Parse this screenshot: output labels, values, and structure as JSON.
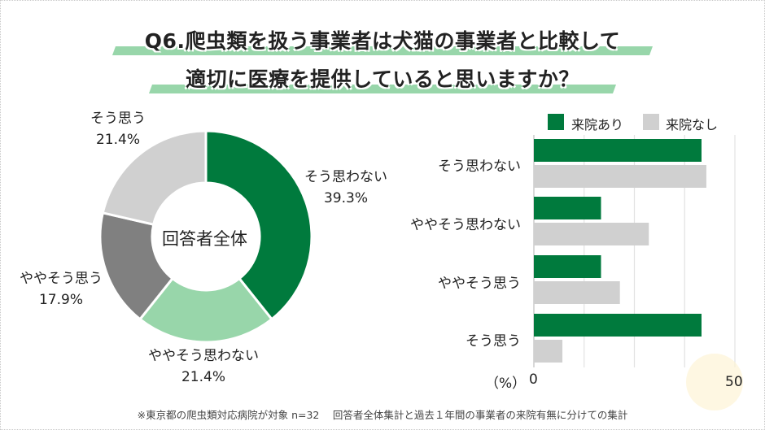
{
  "title": {
    "line1": "Q6.爬虫類を扱う事業者は犬猫の事業者と比較して",
    "line2": "適切に医療を提供していると思いますか？"
  },
  "donut": {
    "center_label": "回答者全体",
    "segments": [
      {
        "label": "そう思わない",
        "percent_text": "39.3%",
        "value": 39.3,
        "color": "#007A3D"
      },
      {
        "label": "ややそう思わない",
        "percent_text": "21.4%",
        "value": 21.4,
        "color": "#98D6AA"
      },
      {
        "label": "ややそう思う",
        "percent_text": "17.9%",
        "value": 17.9,
        "color": "#808080"
      },
      {
        "label": "そう思う",
        "percent_text": "21.4%",
        "value": 21.4,
        "color": "#D0D0D0"
      }
    ]
  },
  "bar": {
    "legend": [
      {
        "label": "来院あり",
        "color": "#007A3D"
      },
      {
        "label": "来院なし",
        "color": "#D0D0D0"
      }
    ],
    "categories": [
      "そう思わない",
      "ややそう思わない",
      "ややそう思う",
      "そう思う"
    ],
    "axis": {
      "unit_label": "（%）",
      "min_label": "0",
      "max_label": "50"
    }
  },
  "footnote": "※東京都の爬虫類対応病院が対象 n=32　 回答者全体集計と過去１年間の事業者の来院有無に分けての集計",
  "chart_data": [
    {
      "type": "pie",
      "subtype": "donut",
      "title": "Q6.爬虫類を扱う事業者は犬猫の事業者と比較して適切に医療を提供していると思いますか？",
      "center_label": "回答者全体",
      "categories": [
        "そう思わない",
        "ややそう思わない",
        "ややそう思う",
        "そう思う"
      ],
      "values": [
        39.3,
        21.4,
        17.9,
        21.4
      ],
      "colors": [
        "#007A3D",
        "#98D6AA",
        "#808080",
        "#D0D0D0"
      ],
      "unit": "%"
    },
    {
      "type": "bar",
      "orientation": "horizontal",
      "categories": [
        "そう思わない",
        "ややそう思わない",
        "ややそう思う",
        "そう思う"
      ],
      "series": [
        {
          "name": "来院あり",
          "values": [
            41.7,
            16.7,
            16.7,
            41.7
          ],
          "color": "#007A3D"
        },
        {
          "name": "来院なし",
          "values": [
            42.9,
            28.6,
            21.4,
            7.1
          ],
          "color": "#D0D0D0"
        }
      ],
      "xlabel": "（%）",
      "xlim": [
        0,
        50
      ],
      "x_tick_labels": [
        "0",
        "50"
      ],
      "grid": true,
      "legend_position": "top"
    }
  ]
}
